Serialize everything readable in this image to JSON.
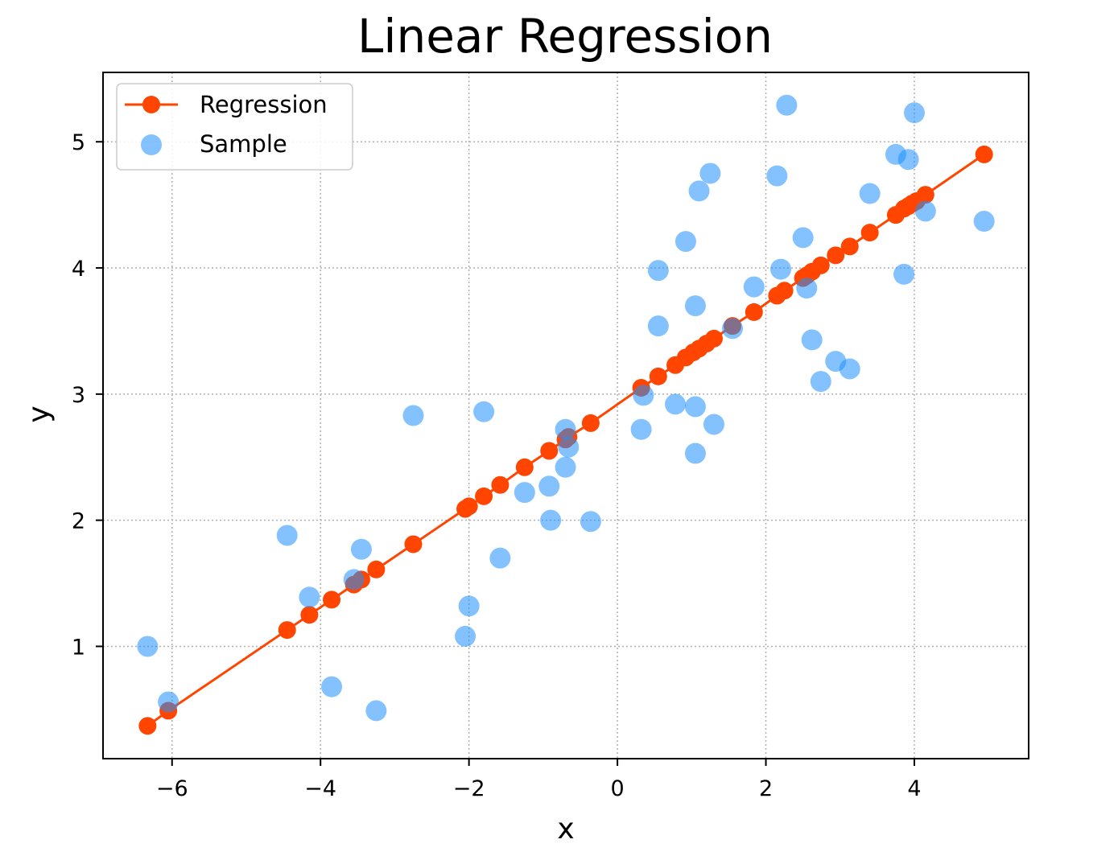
{
  "chart_data": {
    "type": "scatter",
    "title": "Linear Regression",
    "xlabel": "x",
    "ylabel": "y",
    "xlim": [
      -6.93,
      5.54
    ],
    "ylim": [
      0.11,
      5.55
    ],
    "xticks": [
      -6,
      -4,
      -2,
      0,
      2,
      4
    ],
    "yticks": [
      1,
      2,
      3,
      4,
      5
    ],
    "xtick_labels": [
      "−6",
      "−4",
      "−2",
      "0",
      "2",
      "4"
    ],
    "ytick_labels": [
      "1",
      "2",
      "3",
      "4",
      "5"
    ],
    "grid": true,
    "legend_position": "top-left",
    "series": [
      {
        "name": "Regression",
        "kind": "line-markers",
        "color": "#ff4500",
        "x": [
          -6.33,
          -6.05,
          -4.45,
          -4.15,
          -3.85,
          -3.55,
          -3.45,
          -3.25,
          -2.75,
          -2.05,
          -2.0,
          -1.8,
          -1.58,
          -1.25,
          -0.92,
          -0.7,
          -0.66,
          -0.36,
          0.32,
          0.55,
          0.78,
          0.92,
          1.02,
          1.1,
          1.2,
          1.3,
          1.55,
          1.84,
          2.15,
          2.25,
          2.5,
          2.55,
          2.62,
          2.74,
          2.94,
          3.13,
          3.4,
          3.75,
          3.86,
          3.92,
          3.97,
          4.03,
          4.15,
          4.94
        ],
        "y": [
          0.37,
          0.49,
          1.13,
          1.25,
          1.37,
          1.49,
          1.53,
          1.61,
          1.81,
          2.09,
          2.11,
          2.19,
          2.28,
          2.42,
          2.55,
          2.64,
          2.66,
          2.77,
          3.05,
          3.14,
          3.23,
          3.29,
          3.33,
          3.36,
          3.4,
          3.44,
          3.54,
          3.65,
          3.78,
          3.82,
          3.92,
          3.94,
          3.97,
          4.02,
          4.1,
          4.17,
          4.28,
          4.42,
          4.47,
          4.49,
          4.51,
          4.53,
          4.58,
          4.9
        ]
      },
      {
        "name": "Sample",
        "kind": "scatter",
        "color": "#1e90ff",
        "x": [
          -6.33,
          -6.05,
          -4.45,
          -4.15,
          -3.85,
          -3.55,
          -3.45,
          -3.25,
          -2.75,
          -2.0,
          -2.05,
          -1.8,
          -1.58,
          -1.25,
          -0.92,
          -0.9,
          -0.7,
          -0.66,
          -0.7,
          -0.36,
          0.32,
          0.35,
          0.55,
          0.55,
          0.78,
          0.92,
          1.05,
          1.05,
          1.05,
          1.1,
          1.25,
          1.3,
          1.55,
          1.84,
          2.15,
          2.2,
          2.28,
          2.5,
          2.55,
          2.62,
          2.74,
          2.94,
          3.13,
          3.4,
          3.75,
          3.86,
          3.92,
          4.0,
          4.15,
          4.94
        ],
        "y": [
          1.0,
          0.56,
          1.88,
          1.39,
          0.68,
          1.53,
          1.77,
          0.49,
          2.83,
          1.32,
          1.08,
          2.86,
          1.7,
          2.22,
          2.27,
          2.0,
          2.72,
          2.58,
          2.42,
          1.99,
          2.72,
          2.99,
          3.98,
          3.54,
          2.92,
          4.21,
          3.7,
          2.9,
          2.53,
          4.61,
          4.75,
          2.76,
          3.52,
          3.85,
          4.73,
          3.99,
          5.29,
          4.24,
          3.84,
          3.43,
          3.1,
          3.26,
          3.2,
          4.59,
          4.9,
          3.95,
          4.86,
          5.23,
          4.45,
          4.37
        ]
      }
    ]
  }
}
